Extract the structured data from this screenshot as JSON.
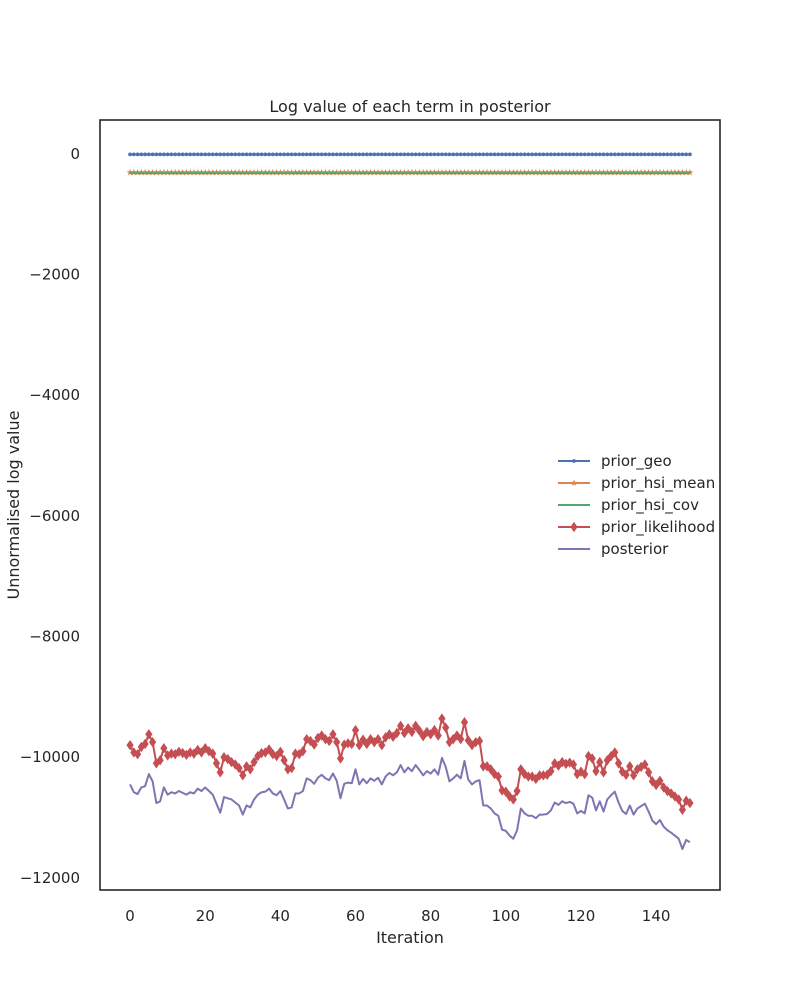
{
  "chart_data": {
    "type": "line",
    "title": "Log value of each term in posterior",
    "xlabel": "Iteration",
    "ylabel": "Unnormalised log value",
    "xlim": [
      -8,
      157
    ],
    "ylim": [
      -12200,
      560
    ],
    "xticks": [
      0,
      20,
      40,
      60,
      80,
      100,
      120,
      140
    ],
    "yticks": [
      0,
      -2000,
      -4000,
      -6000,
      -8000,
      -10000,
      -12000
    ],
    "ytick_labels": [
      "0",
      "−2000",
      "−4000",
      "−6000",
      "−8000",
      "−10000",
      "−12000"
    ],
    "grid": false,
    "legend_position": "center-right",
    "series": [
      {
        "name": "prior_geo",
        "color": "#4c72b0",
        "marker": "point",
        "constant": -10,
        "n": 150
      },
      {
        "name": "prior_hsi_mean",
        "color": "#dd8452",
        "marker": "star",
        "constant": -310,
        "n": 150
      },
      {
        "name": "prior_hsi_cov",
        "color": "#55a868",
        "marker": "none",
        "constant": -320,
        "n": 150
      },
      {
        "name": "prior_likelihood",
        "color": "#c44e52",
        "marker": "diamond",
        "values": [
          -9800,
          -9920,
          -9950,
          -9830,
          -9780,
          -9620,
          -9750,
          -10100,
          -10050,
          -9850,
          -9970,
          -9940,
          -9950,
          -9910,
          -9930,
          -9960,
          -9920,
          -9940,
          -9880,
          -9920,
          -9850,
          -9900,
          -9940,
          -10100,
          -10250,
          -10000,
          -10030,
          -10080,
          -10120,
          -10180,
          -10300,
          -10150,
          -10200,
          -10080,
          -9980,
          -9930,
          -9920,
          -9870,
          -9950,
          -9980,
          -9910,
          -10050,
          -10200,
          -10180,
          -9940,
          -9950,
          -9900,
          -9700,
          -9730,
          -9790,
          -9680,
          -9640,
          -9700,
          -9730,
          -9620,
          -9750,
          -10020,
          -9790,
          -9770,
          -9780,
          -9550,
          -9800,
          -9710,
          -9780,
          -9700,
          -9750,
          -9700,
          -9800,
          -9670,
          -9620,
          -9660,
          -9600,
          -9480,
          -9600,
          -9520,
          -9580,
          -9480,
          -9560,
          -9650,
          -9580,
          -9620,
          -9550,
          -9640,
          -9360,
          -9510,
          -9750,
          -9700,
          -9640,
          -9700,
          -9420,
          -9720,
          -9800,
          -9750,
          -9730,
          -10150,
          -10150,
          -10200,
          -10280,
          -10320,
          -10550,
          -10570,
          -10650,
          -10700,
          -10560,
          -10200,
          -10280,
          -10320,
          -10320,
          -10360,
          -10300,
          -10300,
          -10290,
          -10230,
          -10100,
          -10140,
          -10080,
          -10110,
          -10090,
          -10120,
          -10280,
          -10240,
          -10280,
          -9980,
          -10020,
          -10230,
          -10080,
          -10250,
          -10050,
          -9980,
          -9920,
          -10100,
          -10240,
          -10290,
          -10150,
          -10300,
          -10200,
          -10160,
          -10120,
          -10250,
          -10400,
          -10460,
          -10390,
          -10500,
          -10560,
          -10600,
          -10650,
          -10700,
          -10870,
          -10720,
          -10760
        ]
      },
      {
        "name": "posterior",
        "color": "#8172b3",
        "marker": "none",
        "values": [
          -10450,
          -10580,
          -10610,
          -10500,
          -10480,
          -10280,
          -10400,
          -10760,
          -10730,
          -10500,
          -10620,
          -10580,
          -10600,
          -10560,
          -10590,
          -10620,
          -10580,
          -10600,
          -10520,
          -10560,
          -10500,
          -10560,
          -10620,
          -10770,
          -10920,
          -10660,
          -10680,
          -10700,
          -10750,
          -10800,
          -10950,
          -10800,
          -10830,
          -10700,
          -10620,
          -10580,
          -10570,
          -10520,
          -10600,
          -10630,
          -10560,
          -10700,
          -10850,
          -10830,
          -10600,
          -10600,
          -10560,
          -10350,
          -10380,
          -10440,
          -10340,
          -10290,
          -10350,
          -10380,
          -10270,
          -10390,
          -10680,
          -10440,
          -10420,
          -10430,
          -10200,
          -10450,
          -10360,
          -10430,
          -10350,
          -10390,
          -10340,
          -10450,
          -10320,
          -10260,
          -10300,
          -10250,
          -10130,
          -10250,
          -10170,
          -10230,
          -10130,
          -10210,
          -10300,
          -10230,
          -10270,
          -10200,
          -10290,
          -10010,
          -10160,
          -10400,
          -10350,
          -10290,
          -10350,
          -10060,
          -10370,
          -10450,
          -10400,
          -10380,
          -10800,
          -10800,
          -10850,
          -10930,
          -10970,
          -11200,
          -11220,
          -11300,
          -11350,
          -11210,
          -10850,
          -10930,
          -10970,
          -10970,
          -11010,
          -10950,
          -10950,
          -10940,
          -10880,
          -10750,
          -10790,
          -10730,
          -10760,
          -10740,
          -10770,
          -10930,
          -10890,
          -10930,
          -10630,
          -10670,
          -10880,
          -10730,
          -10900,
          -10700,
          -10630,
          -10570,
          -10750,
          -10890,
          -10940,
          -10800,
          -10950,
          -10850,
          -10810,
          -10770,
          -10900,
          -11050,
          -11110,
          -11040,
          -11150,
          -11210,
          -11250,
          -11300,
          -11350,
          -11520,
          -11370,
          -11410
        ]
      }
    ]
  }
}
